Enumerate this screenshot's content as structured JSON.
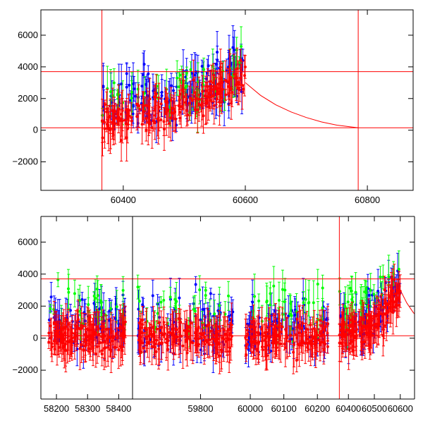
{
  "chart_data": [
    {
      "type": "scatter",
      "panel": "top",
      "xlim": [
        60265,
        60875
      ],
      "ylim": [
        -3800,
        7600
      ],
      "x_ticks": [
        60400,
        60600,
        60800
      ],
      "x_tick_labels": [
        "60400",
        "60600",
        "60800"
      ],
      "y_ticks": [
        -2000,
        0,
        2000,
        4000,
        6000
      ],
      "y_tick_labels": [
        "−2000",
        "0",
        "2000",
        "4000",
        "6000"
      ],
      "title": "",
      "xlabel": "",
      "ylabel": "",
      "grid": false,
      "series": [
        {
          "color": "#0000ff",
          "x_range": [
            60365,
            60600
          ],
          "y_center": 1700,
          "y_trend": 2400,
          "spread": 1300,
          "count": 130
        },
        {
          "color": "#00ff00",
          "x_range": [
            60365,
            60600
          ],
          "y_center": 2200,
          "y_trend": 1600,
          "spread": 1100,
          "count": 50
        },
        {
          "color": "#ff0000",
          "x_range": [
            60365,
            60600
          ],
          "y_center": 700,
          "y_trend": 2800,
          "spread": 800,
          "count": 200
        }
      ],
      "reference_lines": {
        "horizontal": [
          3700,
          150
        ],
        "vertical": [
          60365,
          60785
        ]
      },
      "decay_curve": {
        "x": [
          60600,
          60625,
          60650,
          60675,
          60700,
          60725,
          60750,
          60785
        ],
        "y": [
          3000,
          2200,
          1600,
          1150,
          800,
          520,
          320,
          150
        ]
      }
    },
    {
      "type": "scatter",
      "panel": "bottom",
      "segments": [
        {
          "xlim": [
            58150,
            58440
          ],
          "x_ticks": [
            58200,
            58300,
            58400
          ],
          "x_tick_labels": [
            "58200",
            "58300",
            "58400"
          ],
          "data_range": [
            58175,
            58425
          ]
        },
        {
          "xlim": [
            59625,
            59890
          ],
          "x_ticks": [
            59800
          ],
          "x_tick_labels": [
            "59800"
          ],
          "data_range": [
            59635,
            59885
          ]
        },
        {
          "xlim": [
            59960,
            60250
          ],
          "x_ticks": [
            60000,
            60100,
            60200
          ],
          "x_tick_labels": [
            "60000",
            "60100",
            "60200"
          ],
          "data_range": [
            59985,
            60235
          ]
        },
        {
          "xlim": [
            60345,
            60655
          ],
          "x_ticks": [
            60400,
            60500,
            60600
          ],
          "x_tick_labels": [
            "60400",
            "60500",
            "60600"
          ],
          "data_range": [
            60365,
            60600
          ]
        }
      ],
      "ylim": [
        -3800,
        7600
      ],
      "y_ticks": [
        -2000,
        0,
        2000,
        4000,
        6000
      ],
      "y_tick_labels": [
        "−2000",
        "0",
        "2000",
        "4000",
        "6000"
      ],
      "title": "",
      "xlabel": "",
      "ylabel": "",
      "grid": false,
      "series": [
        {
          "color": "#0000ff",
          "count_per_segment": 70
        },
        {
          "color": "#00ff00",
          "count_per_segment": 30
        },
        {
          "color": "#ff0000",
          "count_per_segment": 150
        }
      ],
      "reference_lines": {
        "horizontal": [
          3700,
          150
        ],
        "vertical": [
          60365
        ]
      }
    }
  ]
}
